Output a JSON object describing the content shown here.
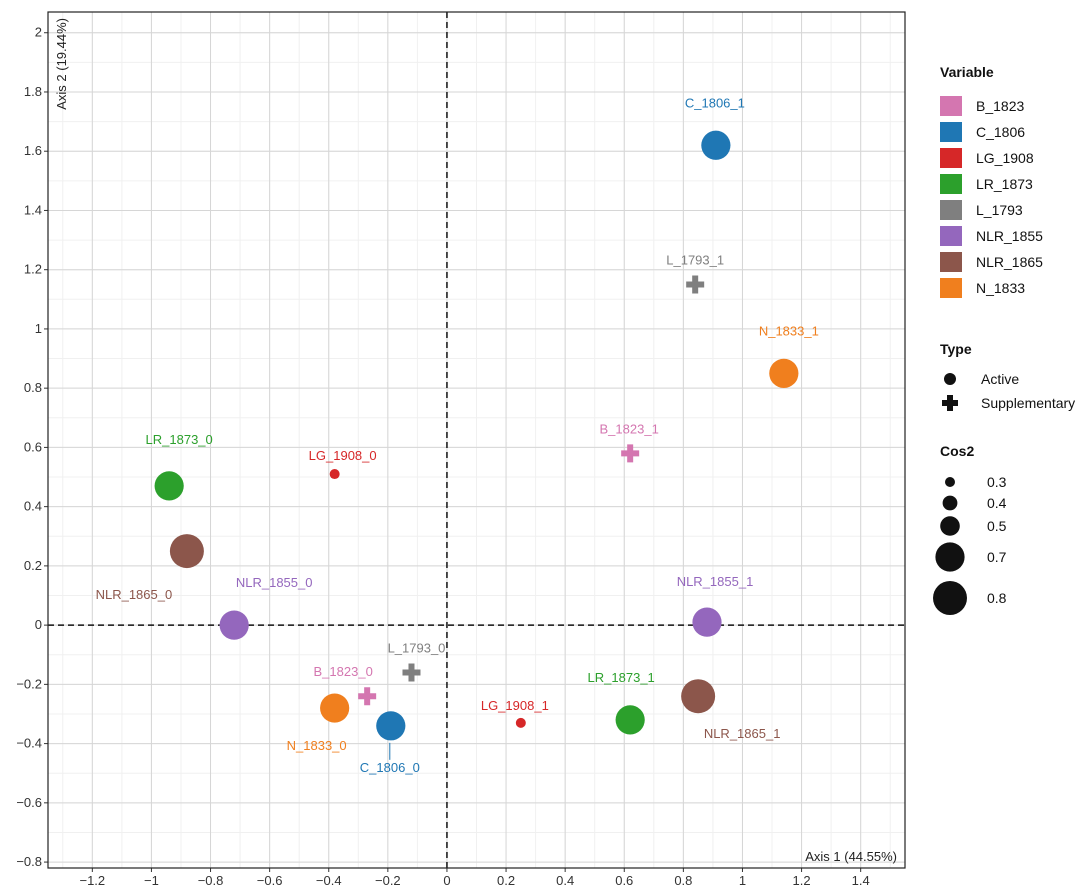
{
  "chart_data": {
    "type": "scatter",
    "title": "",
    "xlabel": "Axis 1 (44.55%)",
    "ylabel": "Axis 2 (19.44%)",
    "xlim": [
      -1.35,
      1.55
    ],
    "ylim": [
      -0.82,
      2.07
    ],
    "x_ticks": [
      -1.2,
      -1,
      -0.8,
      -0.6,
      -0.4,
      -0.2,
      0,
      0.2,
      0.4,
      0.6,
      0.8,
      1,
      1.2,
      1.4
    ],
    "y_ticks": [
      -0.8,
      -0.6,
      -0.4,
      -0.2,
      0,
      0.2,
      0.4,
      0.6,
      0.8,
      1,
      1.2,
      1.4,
      1.6,
      1.8,
      2
    ],
    "grid": true,
    "reference_lines": {
      "x": 0,
      "y": 0,
      "style": "dashed"
    },
    "points": [
      {
        "label": "LR_1873_0",
        "variable": "LR_1873",
        "type": "Active",
        "x": -0.94,
        "y": 0.47,
        "cos2": 0.7
      },
      {
        "label": "LG_1908_0",
        "variable": "LG_1908",
        "type": "Active",
        "x": -0.38,
        "y": 0.51,
        "cos2": 0.3
      },
      {
        "label": "NLR_1865_0",
        "variable": "NLR_1865",
        "type": "Active",
        "x": -0.88,
        "y": 0.25,
        "cos2": 0.8
      },
      {
        "label": "NLR_1855_0",
        "variable": "NLR_1855",
        "type": "Active",
        "x": -0.72,
        "y": 0.0,
        "cos2": 0.7
      },
      {
        "label": "B_1823_0",
        "variable": "B_1823",
        "type": "Supplementary",
        "x": -0.27,
        "y": -0.24,
        "cos2": null
      },
      {
        "label": "L_1793_0",
        "variable": "L_1793",
        "type": "Supplementary",
        "x": -0.12,
        "y": -0.16,
        "cos2": null
      },
      {
        "label": "N_1833_0",
        "variable": "N_1833",
        "type": "Active",
        "x": -0.38,
        "y": -0.28,
        "cos2": 0.7
      },
      {
        "label": "C_1806_0",
        "variable": "C_1806",
        "type": "Active",
        "x": -0.19,
        "y": -0.34,
        "cos2": 0.7
      },
      {
        "label": "C_1806_1",
        "variable": "C_1806",
        "type": "Active",
        "x": 0.91,
        "y": 1.62,
        "cos2": 0.7
      },
      {
        "label": "L_1793_1",
        "variable": "L_1793",
        "type": "Supplementary",
        "x": 0.84,
        "y": 1.15,
        "cos2": null
      },
      {
        "label": "N_1833_1",
        "variable": "N_1833",
        "type": "Active",
        "x": 1.14,
        "y": 0.85,
        "cos2": 0.7
      },
      {
        "label": "B_1823_1",
        "variable": "B_1823",
        "type": "Supplementary",
        "x": 0.62,
        "y": 0.58,
        "cos2": null
      },
      {
        "label": "NLR_1855_1",
        "variable": "NLR_1855",
        "type": "Active",
        "x": 0.88,
        "y": 0.01,
        "cos2": 0.7
      },
      {
        "label": "LR_1873_1",
        "variable": "LR_1873",
        "type": "Active",
        "x": 0.62,
        "y": -0.32,
        "cos2": 0.7
      },
      {
        "label": "LG_1908_1",
        "variable": "LG_1908",
        "type": "Active",
        "x": 0.25,
        "y": -0.33,
        "cos2": 0.3
      },
      {
        "label": "NLR_1865_1",
        "variable": "NLR_1865",
        "type": "Active",
        "x": 0.85,
        "y": -0.24,
        "cos2": 0.8
      }
    ],
    "legend": {
      "placement": "right",
      "variable_title": "Variable",
      "variables": [
        {
          "name": "B_1823",
          "color": "#d476b0"
        },
        {
          "name": "C_1806",
          "color": "#1f77b4"
        },
        {
          "name": "LG_1908",
          "color": "#d62728"
        },
        {
          "name": "LR_1873",
          "color": "#2ca02c"
        },
        {
          "name": "L_1793",
          "color": "#7f7f7f"
        },
        {
          "name": "NLR_1855",
          "color": "#9467bd"
        },
        {
          "name": "NLR_1865",
          "color": "#8c564b"
        },
        {
          "name": "N_1833",
          "color": "#f07f1e"
        }
      ],
      "type_title": "Type",
      "types": [
        {
          "name": "Active",
          "shape": "circle"
        },
        {
          "name": "Supplementary",
          "shape": "cross"
        }
      ],
      "cos2_title": "Cos2",
      "cos2_values": [
        0.3,
        0.4,
        0.5,
        0.7,
        0.8
      ]
    }
  }
}
